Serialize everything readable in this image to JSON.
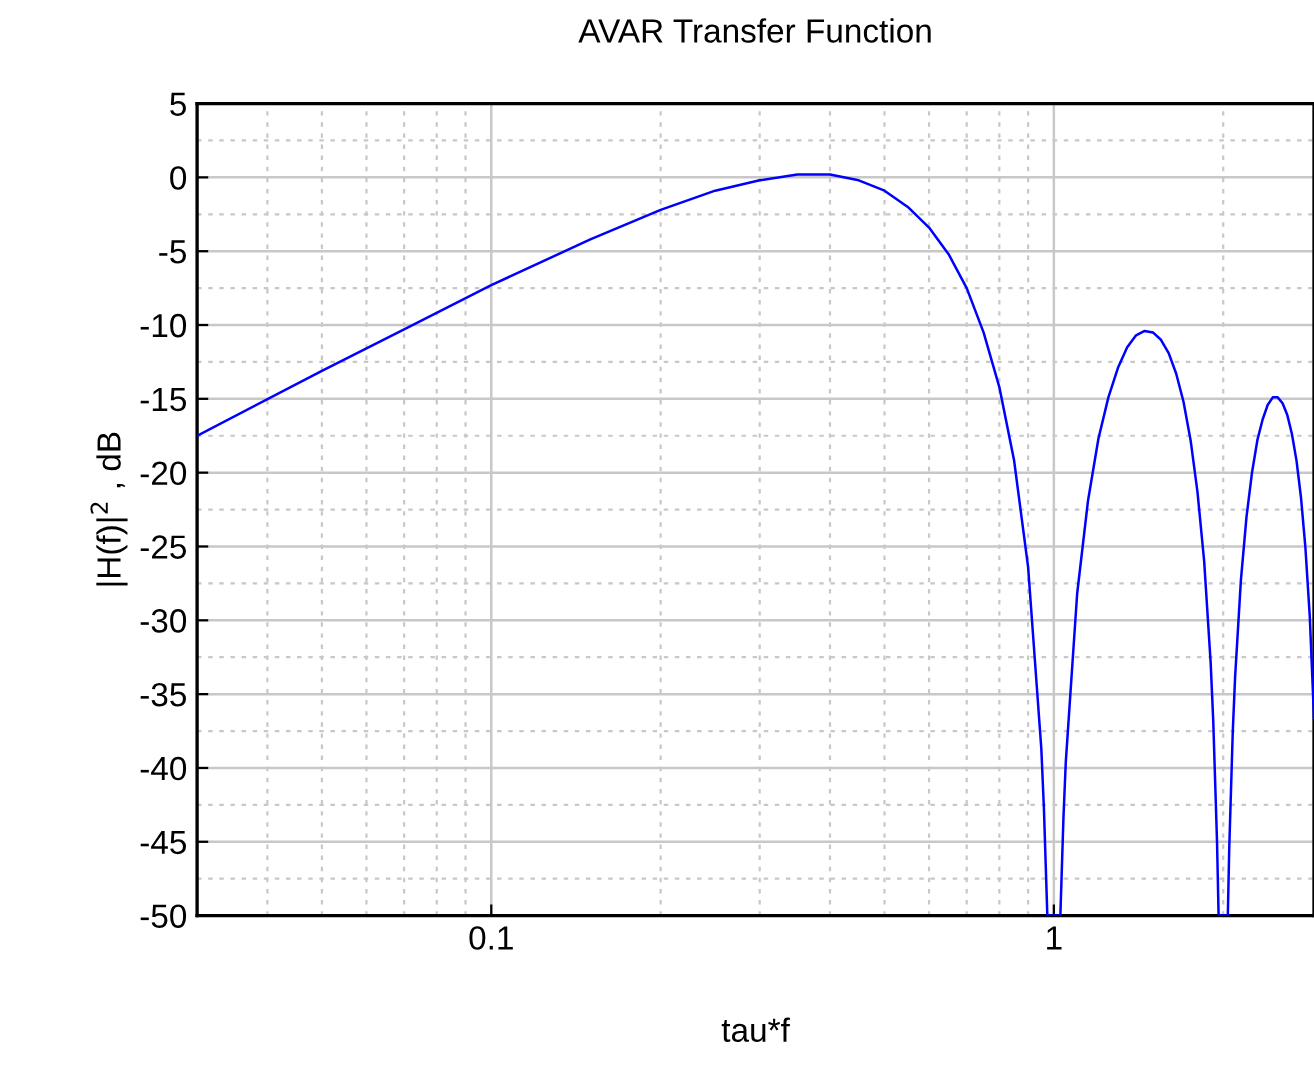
{
  "chart_data": {
    "type": "line",
    "title": "AVAR Transfer Function",
    "xlabel": "tau*f",
    "ylabel": "|H(f)|$^{2}$ , dB",
    "log": "x",
    "grid": true,
    "marker": "none",
    "line_style": "solid",
    "xlim": [
      0.03,
      2.9
    ],
    "xticks": [
      0.1,
      1
    ],
    "ylim": [
      -50,
      5
    ],
    "yticks": [
      -50,
      -45,
      -40,
      -35,
      -30,
      -25,
      -20,
      -15,
      -10,
      -5,
      0,
      5
    ],
    "series": [
      {
        "color": "#0000ff",
        "x": [
          0.03,
          0.05,
          0.07,
          0.1,
          0.15,
          0.2,
          0.25,
          0.3,
          0.35,
          0.4,
          0.45,
          0.5,
          0.55,
          0.6,
          0.65,
          0.7,
          0.75,
          0.8,
          0.85,
          0.9,
          0.95,
          0.96,
          0.9737,
          1.027,
          1.04,
          1.05,
          1.1,
          1.15,
          1.2,
          1.25,
          1.3,
          1.35,
          1.4,
          1.45,
          1.5,
          1.55,
          1.6,
          1.65,
          1.7,
          1.75,
          1.8,
          1.85,
          1.9,
          1.92,
          1.95,
          1.9625,
          2.038,
          2.05,
          2.08,
          2.1,
          2.15,
          2.2,
          2.25,
          2.3,
          2.35,
          2.4,
          2.45,
          2.5,
          2.55,
          2.6,
          2.65,
          2.7,
          2.75,
          2.8,
          2.85,
          2.9
        ],
        "values": [
          -17.5,
          -13.1,
          -10.3,
          -7.3,
          -4.2,
          -2.2,
          -0.9,
          -0.2,
          0.2,
          0.2,
          -0.2,
          -0.9,
          -2.0,
          -3.4,
          -5.2,
          -7.5,
          -10.5,
          -14.2,
          -19.2,
          -26.4,
          -38.7,
          -42.7,
          -50,
          -50,
          -43.4,
          -39.6,
          -28.2,
          -21.9,
          -17.7,
          -14.9,
          -12.9,
          -11.5,
          -10.7,
          -10.4,
          -10.5,
          -11.0,
          -11.9,
          -13.3,
          -15.2,
          -17.8,
          -21.3,
          -26.0,
          -32.9,
          -36.8,
          -45.0,
          -50,
          -50,
          -45.4,
          -37.5,
          -33.8,
          -27.3,
          -23.0,
          -20.0,
          -17.8,
          -16.4,
          -15.4,
          -14.9,
          -14.9,
          -15.3,
          -16.1,
          -17.4,
          -19.2,
          -21.7,
          -25.1,
          -29.7,
          -36.6
        ]
      }
    ]
  }
}
